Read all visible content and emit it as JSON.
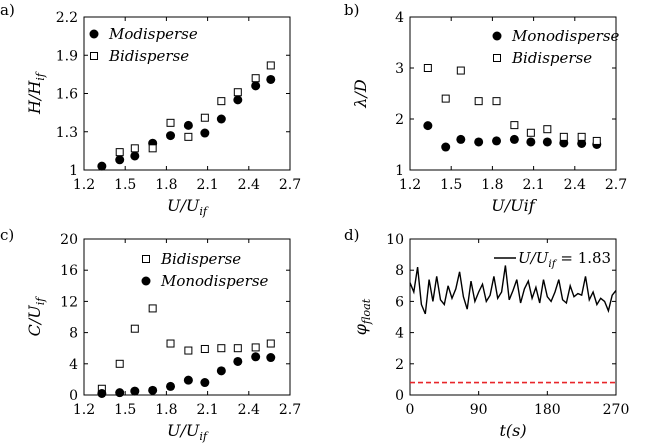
{
  "chart_data": [
    {
      "panel_label": "a)",
      "type": "scatter",
      "xlabel": "U/U_if",
      "ylabel": "H/H_if",
      "xlim": [
        1.2,
        2.7
      ],
      "ylim": [
        1.0,
        2.2
      ],
      "xticks": [
        "1.2",
        "1.5",
        "1.8",
        "2.1",
        "2.4",
        "2.7"
      ],
      "yticks": [
        "1",
        "1.3",
        "1.6",
        "1.9",
        "2.2"
      ],
      "legend": "top-left",
      "series": [
        {
          "name": "Modisperse",
          "marker": "filled-circle",
          "x": [
            1.33,
            1.46,
            1.57,
            1.7,
            1.83,
            1.96,
            2.08,
            2.2,
            2.32,
            2.45,
            2.56
          ],
          "y": [
            1.03,
            1.08,
            1.11,
            1.21,
            1.27,
            1.35,
            1.29,
            1.4,
            1.55,
            1.66,
            1.71
          ]
        },
        {
          "name": "Bidisperse",
          "marker": "open-square",
          "x": [
            1.46,
            1.57,
            1.7,
            1.83,
            1.96,
            2.08,
            2.2,
            2.32,
            2.45,
            2.56
          ],
          "y": [
            1.14,
            1.17,
            1.17,
            1.37,
            1.26,
            1.41,
            1.54,
            1.61,
            1.72,
            1.82
          ]
        }
      ]
    },
    {
      "panel_label": "b)",
      "type": "scatter",
      "xlabel": "U/Uif",
      "ylabel": "λ/D",
      "xlim": [
        1.2,
        2.7
      ],
      "ylim": [
        1,
        4
      ],
      "xticks": [
        "1.2",
        "1.5",
        "1.8",
        "2.1",
        "2.4",
        "2.7"
      ],
      "yticks": [
        "1",
        "2",
        "3",
        "4"
      ],
      "legend": "top-right",
      "series": [
        {
          "name": "Monodisperse",
          "marker": "filled-circle",
          "x": [
            1.33,
            1.46,
            1.57,
            1.7,
            1.83,
            1.96,
            2.08,
            2.2,
            2.32,
            2.45,
            2.56
          ],
          "y": [
            1.87,
            1.45,
            1.6,
            1.55,
            1.57,
            1.6,
            1.55,
            1.55,
            1.53,
            1.52,
            1.5
          ]
        },
        {
          "name": "Bidisperse",
          "marker": "open-square",
          "x": [
            1.33,
            1.46,
            1.57,
            1.7,
            1.83,
            1.96,
            2.08,
            2.2,
            2.32,
            2.45,
            2.56
          ],
          "y": [
            3.0,
            2.4,
            2.95,
            2.35,
            2.35,
            1.88,
            1.73,
            1.8,
            1.65,
            1.65,
            1.57
          ]
        }
      ]
    },
    {
      "panel_label": "c)",
      "type": "scatter",
      "xlabel": "U/U_if",
      "ylabel": "C/U_if",
      "xlim": [
        1.2,
        2.7
      ],
      "ylim": [
        0,
        20
      ],
      "xticks": [
        "1.2",
        "1.5",
        "1.8",
        "2.1",
        "2.4",
        "2.7"
      ],
      "yticks": [
        "0",
        "4",
        "8",
        "12",
        "16",
        "20"
      ],
      "legend": "top-right",
      "series": [
        {
          "name": "Bidisperse",
          "marker": "open-square",
          "x": [
            1.33,
            1.46,
            1.57,
            1.7,
            1.83,
            1.96,
            2.08,
            2.2,
            2.32,
            2.45,
            2.56
          ],
          "y": [
            0.8,
            4.0,
            8.5,
            11.1,
            6.6,
            5.7,
            5.9,
            6.0,
            6.0,
            6.1,
            6.6
          ]
        },
        {
          "name": "Monodisperse",
          "marker": "filled-circle",
          "x": [
            1.33,
            1.46,
            1.57,
            1.7,
            1.83,
            1.96,
            2.08,
            2.2,
            2.32,
            2.45,
            2.56
          ],
          "y": [
            0.2,
            0.3,
            0.5,
            0.6,
            1.1,
            1.9,
            1.6,
            3.1,
            4.3,
            4.9,
            4.8
          ]
        }
      ]
    },
    {
      "panel_label": "d)",
      "type": "line",
      "xlabel": "t(s)",
      "ylabel": "φ_float",
      "xlim": [
        0,
        270
      ],
      "ylim": [
        0,
        10
      ],
      "xticks": [
        "0",
        "90",
        "180",
        "270"
      ],
      "yticks": [
        "0",
        "2",
        "4",
        "6",
        "8",
        "10"
      ],
      "legend": "top-right",
      "legend_text": "U/U_if = 1.83",
      "reference_line": {
        "y": 0.8,
        "style": "dashed",
        "color": "#e8262a"
      },
      "series": [
        {
          "name": "U/U_if = 1.83",
          "color": "#000000",
          "x": [
            0,
            5,
            10,
            15,
            20,
            25,
            30,
            35,
            40,
            45,
            50,
            55,
            60,
            65,
            70,
            75,
            80,
            85,
            90,
            95,
            100,
            105,
            110,
            115,
            120,
            125,
            130,
            135,
            140,
            145,
            150,
            155,
            160,
            165,
            170,
            175,
            180,
            185,
            190,
            195,
            200,
            205,
            210,
            215,
            220,
            225,
            230,
            235,
            240,
            245,
            250,
            255,
            260,
            265,
            270
          ],
          "y": [
            7.2,
            6.6,
            8.2,
            5.8,
            5.2,
            7.4,
            6.0,
            7.6,
            6.1,
            5.8,
            7.0,
            6.2,
            6.8,
            7.9,
            6.3,
            5.5,
            7.3,
            6.0,
            6.6,
            7.1,
            6.0,
            6.4,
            7.6,
            6.2,
            6.6,
            8.3,
            6.1,
            6.7,
            7.4,
            5.9,
            6.8,
            7.3,
            6.2,
            6.9,
            5.9,
            7.4,
            6.3,
            6.0,
            6.6,
            7.4,
            6.1,
            5.9,
            7.0,
            6.3,
            6.5,
            6.4,
            7.6,
            6.1,
            6.6,
            5.8,
            6.2,
            6.0,
            5.4,
            6.4,
            6.7
          ]
        }
      ]
    }
  ]
}
